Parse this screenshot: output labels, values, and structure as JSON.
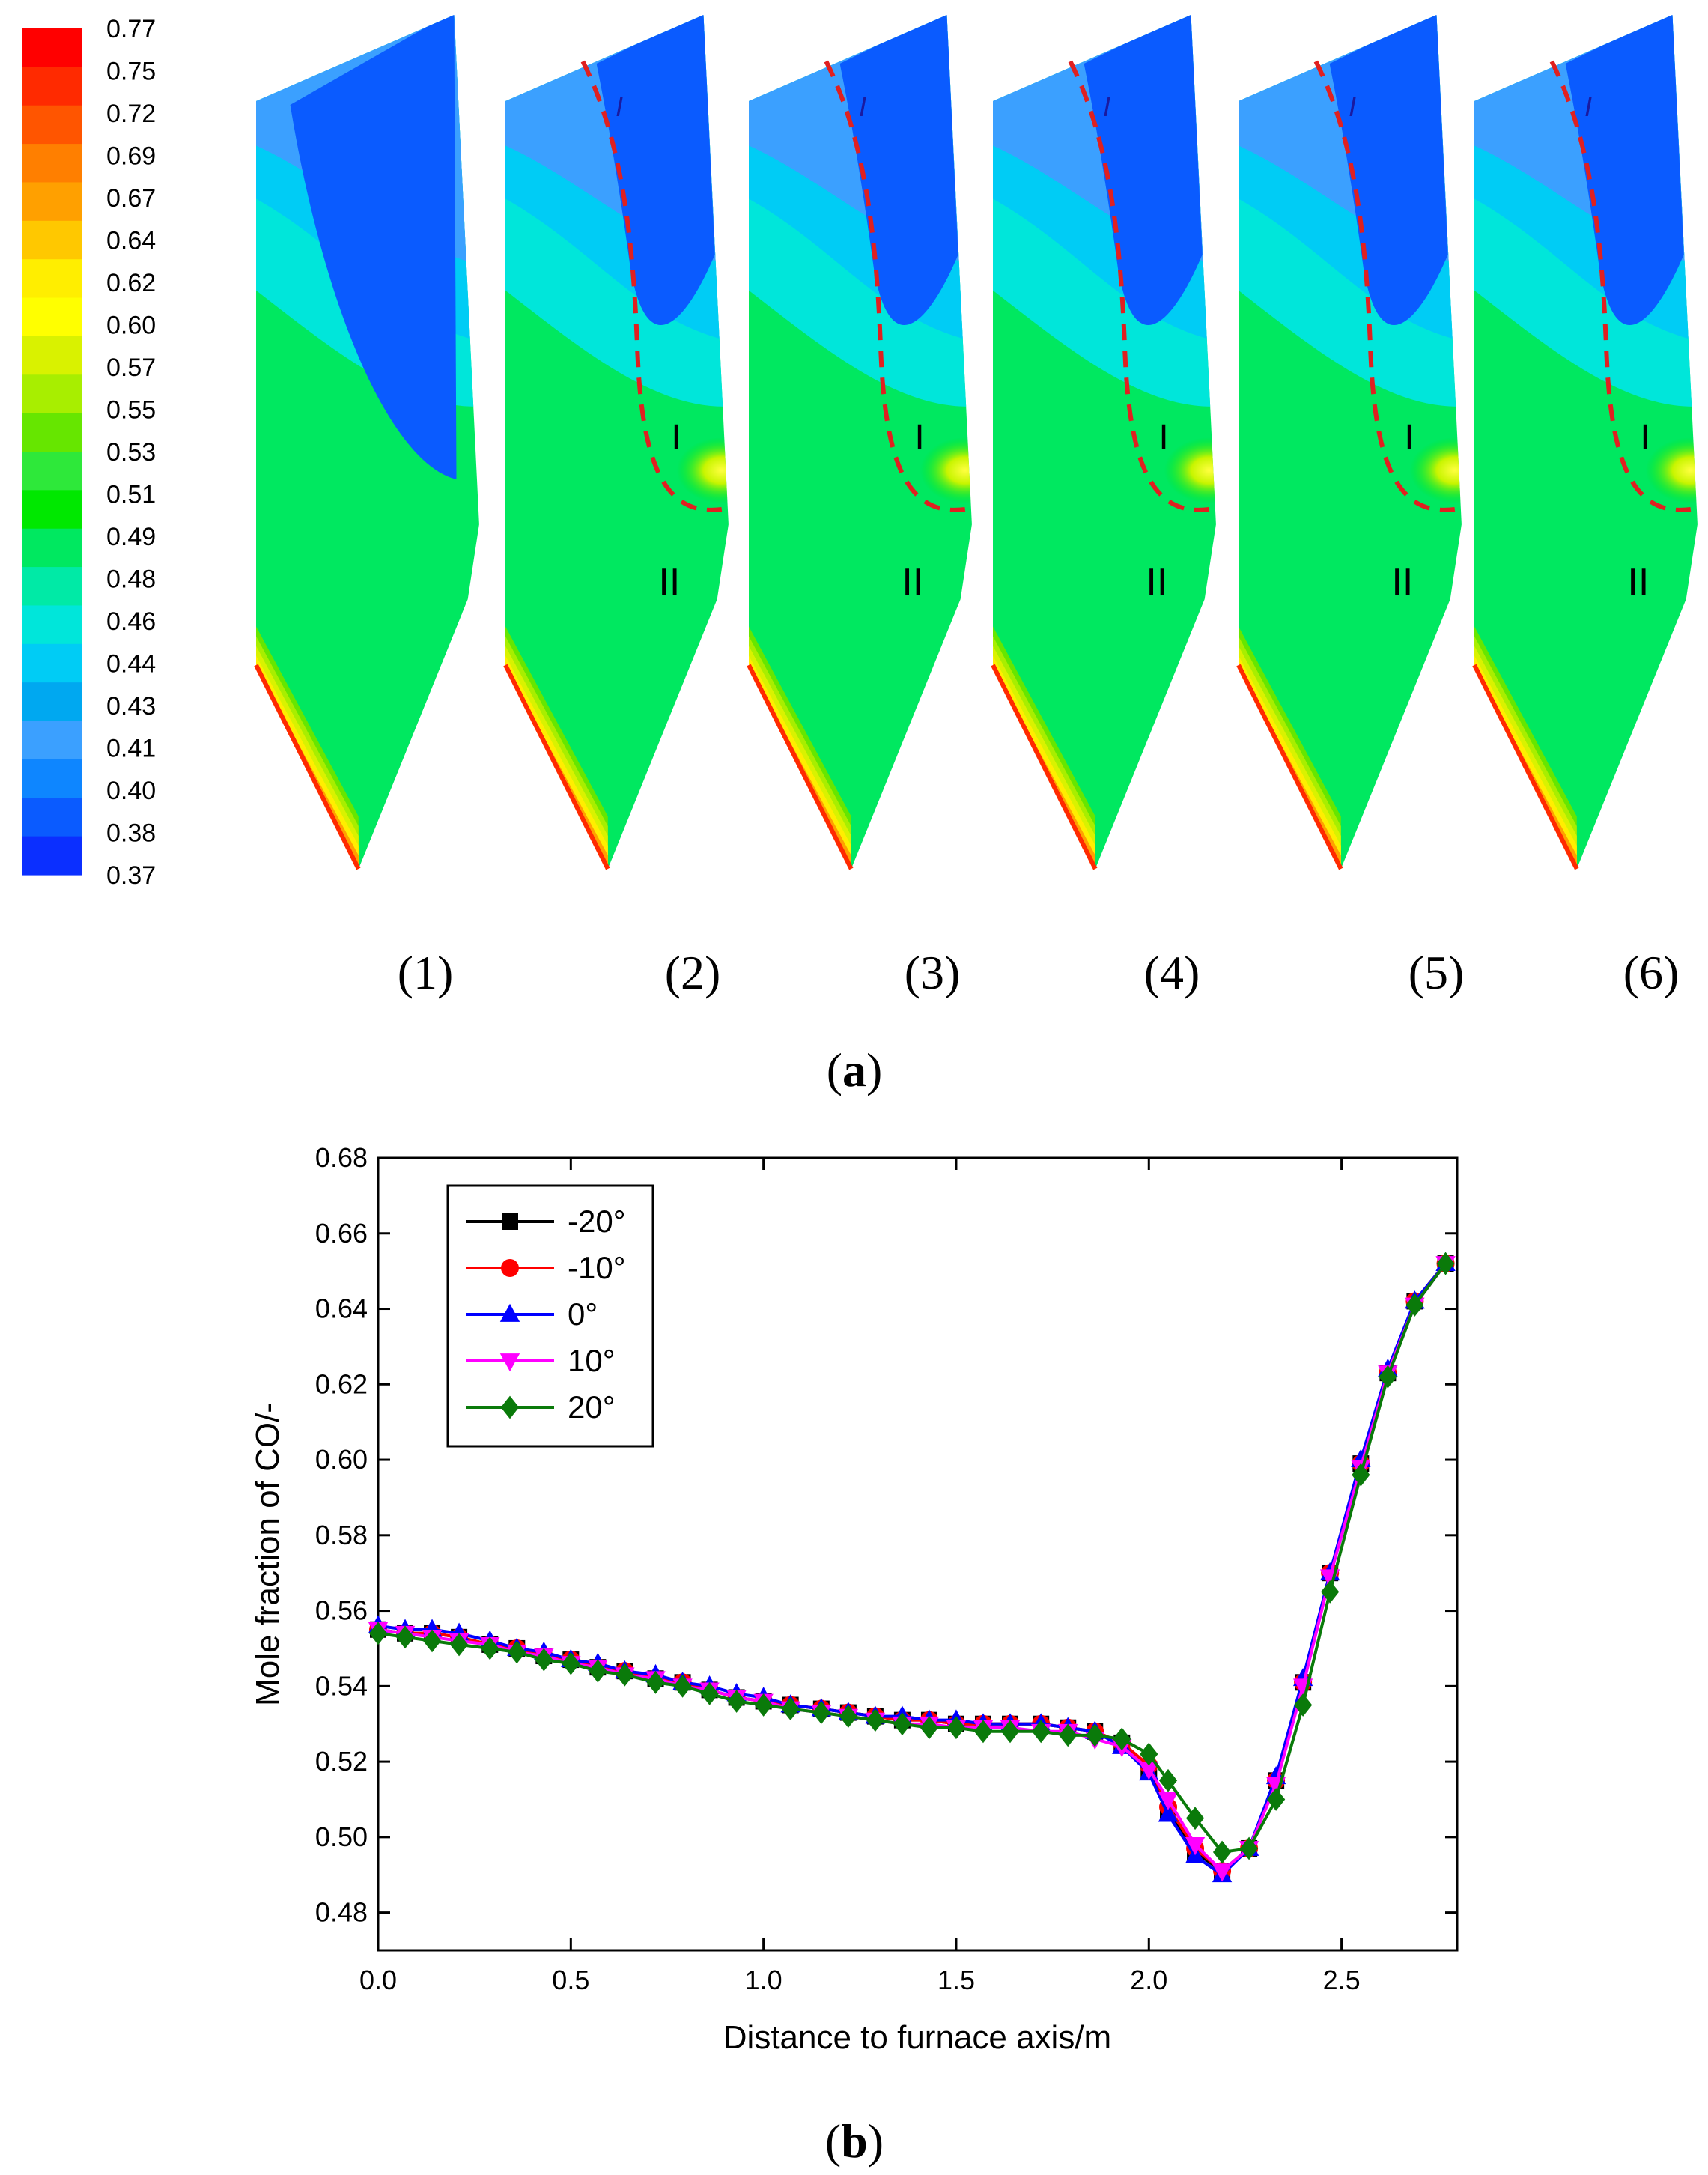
{
  "figure": {
    "panel_a_label": "a",
    "panel_b_label": "b"
  },
  "colorbar": {
    "labels": [
      "0.77",
      "0.75",
      "0.72",
      "0.69",
      "0.67",
      "0.64",
      "0.62",
      "0.60",
      "0.57",
      "0.55",
      "0.53",
      "0.51",
      "0.49",
      "0.48",
      "0.46",
      "0.44",
      "0.43",
      "0.41",
      "0.40",
      "0.38",
      "0.37"
    ],
    "colors": [
      "#ff0000",
      "#ff2a00",
      "#ff5500",
      "#ff7f00",
      "#ffa000",
      "#ffc800",
      "#ffee00",
      "#ffff00",
      "#d9f200",
      "#a8ee00",
      "#66e600",
      "#2ee83a",
      "#00e800",
      "#00e860",
      "#00eaa6",
      "#00e6da",
      "#00ccf5",
      "#00a8f0",
      "#3ba0ff",
      "#0e86ff",
      "#0a5bff",
      "#0b2fff"
    ]
  },
  "contour_panels": [
    {
      "label": "(1)",
      "region_marks": []
    },
    {
      "label": "(2)",
      "region_marks": [
        "I",
        "I",
        "II"
      ]
    },
    {
      "label": "(3)",
      "region_marks": [
        "I",
        "I",
        "II"
      ]
    },
    {
      "label": "(4)",
      "region_marks": [
        "I",
        "I",
        "II"
      ]
    },
    {
      "label": "(5)",
      "region_marks": [
        "I",
        "I",
        "II"
      ]
    },
    {
      "label": "(6)",
      "region_marks": [
        "I",
        "I",
        "II"
      ]
    }
  ],
  "chart_data": {
    "type": "line",
    "title": "",
    "xlabel": "Distance to furnace axis/m",
    "ylabel": "Mole fraction of CO/-",
    "xlim": [
      0.0,
      2.8
    ],
    "ylim": [
      0.47,
      0.68
    ],
    "xticks": [
      "0.0",
      "0.5",
      "1.0",
      "1.5",
      "2.0",
      "2.5"
    ],
    "yticks": [
      "0.48",
      "0.50",
      "0.52",
      "0.54",
      "0.56",
      "0.58",
      "0.60",
      "0.62",
      "0.64",
      "0.66",
      "0.68"
    ],
    "xtick_values": [
      0.0,
      0.5,
      1.0,
      1.5,
      2.0,
      2.5
    ],
    "ytick_values": [
      0.48,
      0.5,
      0.52,
      0.54,
      0.56,
      0.58,
      0.6,
      0.62,
      0.64,
      0.66,
      0.68
    ],
    "legend_position": "top-left",
    "x": [
      0.0,
      0.07,
      0.14,
      0.21,
      0.29,
      0.36,
      0.43,
      0.5,
      0.57,
      0.64,
      0.72,
      0.79,
      0.86,
      0.93,
      1.0,
      1.07,
      1.15,
      1.22,
      1.29,
      1.36,
      1.43,
      1.5,
      1.57,
      1.64,
      1.72,
      1.79,
      1.86,
      1.93,
      2.0,
      2.05,
      2.12,
      2.19,
      2.26,
      2.33,
      2.4,
      2.47,
      2.55,
      2.62,
      2.69,
      2.77
    ],
    "series": [
      {
        "name": "-20°",
        "color": "#000000",
        "marker": "square",
        "values": [
          0.555,
          0.554,
          0.554,
          0.553,
          0.551,
          0.55,
          0.548,
          0.547,
          0.545,
          0.544,
          0.542,
          0.541,
          0.539,
          0.537,
          0.536,
          0.535,
          0.534,
          0.533,
          0.532,
          0.531,
          0.531,
          0.53,
          0.53,
          0.53,
          0.53,
          0.529,
          0.528,
          0.525,
          0.518,
          0.507,
          0.496,
          0.491,
          0.497,
          0.515,
          0.541,
          0.57,
          0.599,
          0.623,
          0.642,
          0.652
        ]
      },
      {
        "name": "-10°",
        "color": "#ff0000",
        "marker": "circle",
        "values": [
          0.555,
          0.554,
          0.554,
          0.553,
          0.551,
          0.55,
          0.548,
          0.547,
          0.545,
          0.544,
          0.542,
          0.541,
          0.539,
          0.537,
          0.536,
          0.535,
          0.534,
          0.533,
          0.532,
          0.531,
          0.531,
          0.53,
          0.53,
          0.53,
          0.53,
          0.529,
          0.528,
          0.525,
          0.519,
          0.508,
          0.497,
          0.491,
          0.497,
          0.515,
          0.541,
          0.57,
          0.599,
          0.623,
          0.642,
          0.652
        ]
      },
      {
        "name": "0°",
        "color": "#0000ff",
        "marker": "triangle-up",
        "values": [
          0.556,
          0.555,
          0.555,
          0.554,
          0.552,
          0.55,
          0.549,
          0.547,
          0.546,
          0.544,
          0.543,
          0.541,
          0.54,
          0.538,
          0.537,
          0.535,
          0.534,
          0.533,
          0.532,
          0.532,
          0.531,
          0.531,
          0.53,
          0.53,
          0.53,
          0.529,
          0.528,
          0.524,
          0.517,
          0.506,
          0.495,
          0.49,
          0.497,
          0.516,
          0.542,
          0.57,
          0.6,
          0.624,
          0.642,
          0.652
        ]
      },
      {
        "name": "10°",
        "color": "#ff00ff",
        "marker": "triangle-down",
        "values": [
          0.555,
          0.554,
          0.553,
          0.552,
          0.551,
          0.549,
          0.548,
          0.546,
          0.545,
          0.543,
          0.542,
          0.54,
          0.539,
          0.537,
          0.536,
          0.534,
          0.533,
          0.532,
          0.531,
          0.53,
          0.53,
          0.529,
          0.529,
          0.529,
          0.528,
          0.528,
          0.526,
          0.524,
          0.518,
          0.51,
          0.498,
          0.491,
          0.497,
          0.514,
          0.54,
          0.569,
          0.598,
          0.623,
          0.641,
          0.652
        ]
      },
      {
        "name": "20°",
        "color": "#0a7a0a",
        "marker": "diamond",
        "values": [
          0.554,
          0.553,
          0.552,
          0.551,
          0.55,
          0.549,
          0.547,
          0.546,
          0.544,
          0.543,
          0.541,
          0.54,
          0.538,
          0.536,
          0.535,
          0.534,
          0.533,
          0.532,
          0.531,
          0.53,
          0.529,
          0.529,
          0.528,
          0.528,
          0.528,
          0.527,
          0.527,
          0.526,
          0.522,
          0.515,
          0.505,
          0.496,
          0.497,
          0.51,
          0.535,
          0.565,
          0.596,
          0.622,
          0.641,
          0.652
        ]
      }
    ]
  }
}
